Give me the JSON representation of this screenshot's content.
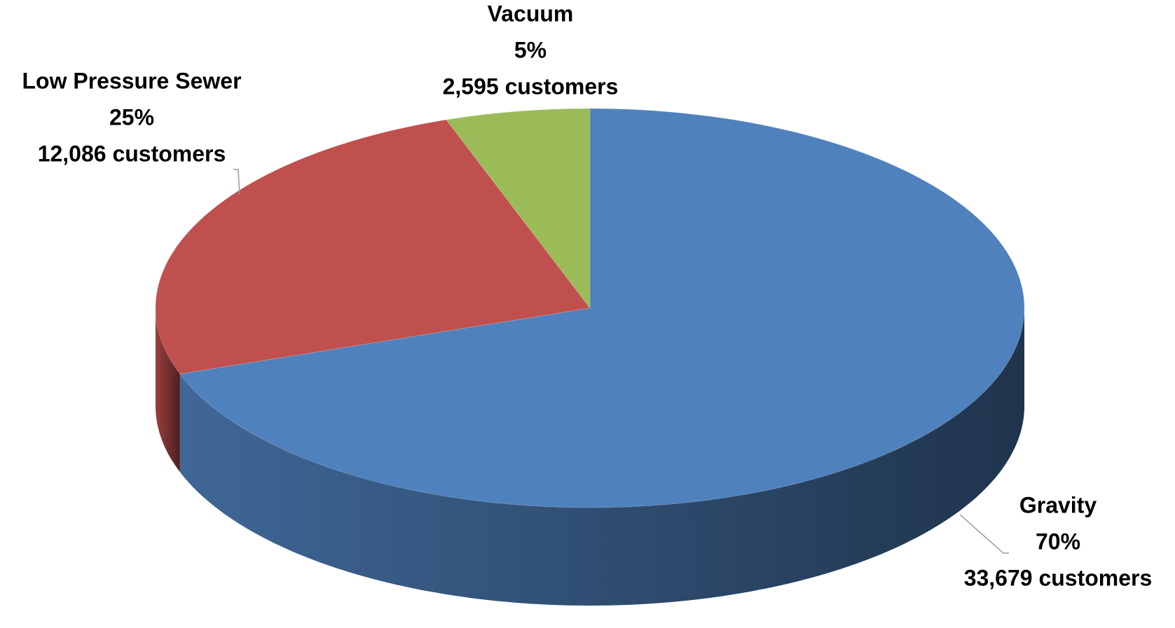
{
  "chart_data": {
    "type": "pie",
    "categories": [
      "Gravity",
      "Low Pressure Sewer",
      "Vacuum"
    ],
    "values": [
      33679,
      12086,
      2595
    ],
    "value_labels": [
      "33,679 customers",
      "12,086 customers",
      "2,595 customers"
    ],
    "percentages": [
      {
        "value": 70,
        "label": "70%"
      },
      {
        "value": 25,
        "label": "25%"
      },
      {
        "value": 5,
        "label": "5%"
      }
    ],
    "colors": [
      "#4f81bd",
      "#c0504d",
      "#9bbb59"
    ]
  }
}
